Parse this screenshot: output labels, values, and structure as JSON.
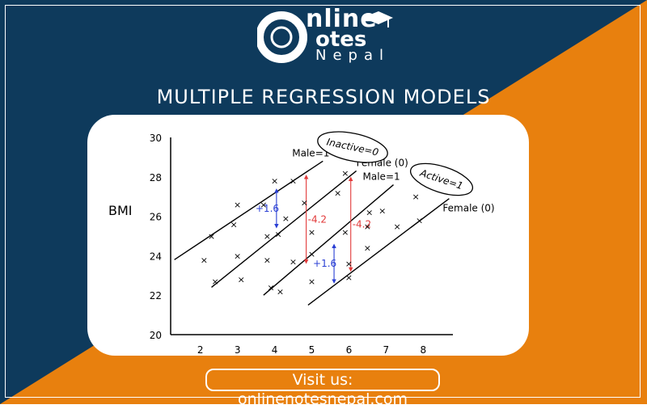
{
  "brand": {
    "logo_word1": "nline",
    "logo_word2": "otes",
    "logo_word3": "Nepal",
    "colors": {
      "navy": "#0e3a5c",
      "orange": "#e8800e",
      "white": "#ffffff"
    }
  },
  "heading": "MULTIPLE REGRESSION MODELS",
  "footer": {
    "visit_text": "Visit us: onlinenotesnepal.com"
  },
  "chart_data": {
    "type": "scatter",
    "ylabel": "BMI",
    "xlabel": "",
    "xlim": [
      1.2,
      8.8
    ],
    "ylim": [
      20,
      30
    ],
    "xticks": [
      2,
      3,
      4,
      5,
      6,
      7,
      8
    ],
    "yticks": [
      20,
      22,
      24,
      26,
      28,
      30
    ],
    "points": [
      [
        2.1,
        23.8
      ],
      [
        2.3,
        25.0
      ],
      [
        2.4,
        22.7
      ],
      [
        2.9,
        25.6
      ],
      [
        3.0,
        26.6
      ],
      [
        3.0,
        24.0
      ],
      [
        3.1,
        22.8
      ],
      [
        3.7,
        26.6
      ],
      [
        3.8,
        25.0
      ],
      [
        3.8,
        23.8
      ],
      [
        3.9,
        22.4
      ],
      [
        4.0,
        27.8
      ],
      [
        4.1,
        25.1
      ],
      [
        4.15,
        22.2
      ],
      [
        4.3,
        25.9
      ],
      [
        4.5,
        27.8
      ],
      [
        4.5,
        23.7
      ],
      [
        4.8,
        26.7
      ],
      [
        5.0,
        25.2
      ],
      [
        5.0,
        24.1
      ],
      [
        5.0,
        22.7
      ],
      [
        5.7,
        27.2
      ],
      [
        5.9,
        28.2
      ],
      [
        5.9,
        25.2
      ],
      [
        6.0,
        23.6
      ],
      [
        6.0,
        22.9
      ],
      [
        6.5,
        25.5
      ],
      [
        6.5,
        24.4
      ],
      [
        6.55,
        26.2
      ],
      [
        6.9,
        26.3
      ],
      [
        7.3,
        25.5
      ],
      [
        7.8,
        27.0
      ],
      [
        7.9,
        25.8
      ]
    ],
    "lines": [
      {
        "x1": 1.3,
        "y1": 23.8,
        "x2": 5.3,
        "y2": 28.8,
        "label": "Male=1"
      },
      {
        "x1": 2.3,
        "y1": 22.4,
        "x2": 6.2,
        "y2": 28.3,
        "label": "Female (0)"
      },
      {
        "x1": 3.7,
        "y1": 22.0,
        "x2": 7.2,
        "y2": 27.6,
        "label": "Male=1"
      },
      {
        "x1": 4.9,
        "y1": 21.5,
        "x2": 8.7,
        "y2": 26.9,
        "label": "Female (0)"
      }
    ],
    "ellipses": [
      {
        "label": "Inactive=0"
      },
      {
        "label": "Active=1"
      }
    ],
    "annotations": [
      {
        "text": "+1.6",
        "color": "#2a3fd4",
        "x": 4.05,
        "y_top": 27.3,
        "y_bottom": 25.5
      },
      {
        "text": "-4.2",
        "color": "#e23a3a",
        "x": 4.85,
        "y_top": 28.0,
        "y_bottom": 23.7
      },
      {
        "text": "-4.2",
        "color": "#e23a3a",
        "x": 6.05,
        "y_top": 27.9,
        "y_bottom": 23.3
      },
      {
        "text": "+1.6",
        "color": "#2a3fd4",
        "x": 5.6,
        "y_top": 24.5,
        "y_bottom": 22.7
      }
    ]
  }
}
